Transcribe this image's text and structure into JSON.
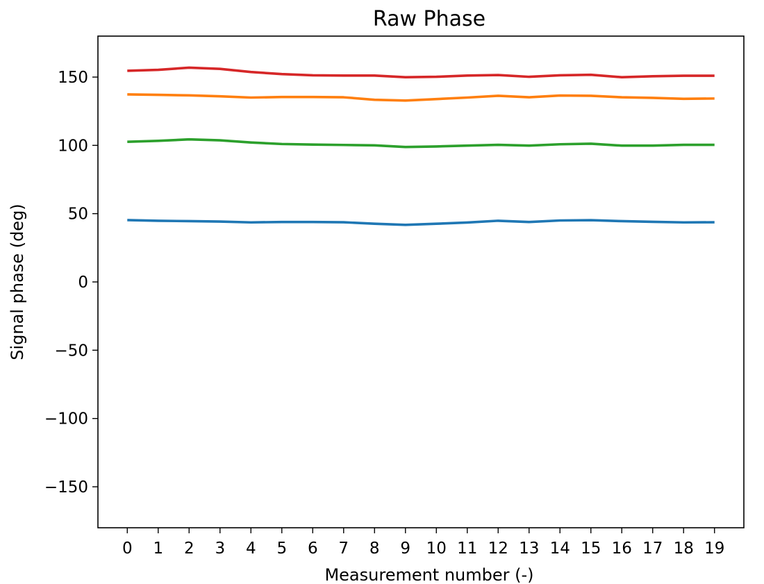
{
  "chart_data": {
    "type": "line",
    "title": "Raw Phase",
    "xlabel": "Measurement number (-)",
    "ylabel": "Signal phase (deg)",
    "xlim": [
      -0.95,
      19.95
    ],
    "ylim": [
      -180,
      180
    ],
    "x": [
      0,
      1,
      2,
      3,
      4,
      5,
      6,
      7,
      8,
      9,
      10,
      11,
      12,
      13,
      14,
      15,
      16,
      17,
      18,
      19
    ],
    "xticks": [
      "0",
      "1",
      "2",
      "3",
      "4",
      "5",
      "6",
      "7",
      "8",
      "9",
      "10",
      "11",
      "12",
      "13",
      "14",
      "15",
      "16",
      "17",
      "18",
      "19"
    ],
    "yticks": [
      150,
      100,
      50,
      0,
      -50,
      -100,
      -150
    ],
    "ytick_labels": [
      "150",
      "100",
      "50",
      "0",
      "−50",
      "−100",
      "−150"
    ],
    "grid": false,
    "series": [
      {
        "color": "#1f77b4",
        "values": [
          45.3,
          44.8,
          44.5,
          44.2,
          43.6,
          43.9,
          43.9,
          43.7,
          42.6,
          41.8,
          42.6,
          43.5,
          44.8,
          43.9,
          45.0,
          45.2,
          44.5,
          44.0,
          43.6,
          43.7
        ]
      },
      {
        "color": "#2ca02c",
        "values": [
          102.6,
          103.3,
          104.4,
          103.7,
          102.1,
          101.0,
          100.6,
          100.3,
          100.0,
          98.8,
          99.2,
          99.8,
          100.4,
          99.8,
          100.8,
          101.2,
          99.8,
          99.8,
          100.4,
          100.4
        ]
      },
      {
        "color": "#ff7f0e",
        "values": [
          137.3,
          137.0,
          136.6,
          135.9,
          135.0,
          135.4,
          135.4,
          135.2,
          133.4,
          132.8,
          133.9,
          135.0,
          136.3,
          135.2,
          136.5,
          136.3,
          135.2,
          134.8,
          134.1,
          134.3
        ]
      },
      {
        "color": "#d62728",
        "values": [
          154.6,
          155.3,
          156.9,
          156.0,
          153.7,
          152.2,
          151.3,
          151.1,
          151.1,
          149.9,
          150.2,
          151.1,
          151.5,
          150.2,
          151.3,
          151.7,
          149.9,
          150.6,
          151.0,
          151.0
        ]
      }
    ]
  }
}
